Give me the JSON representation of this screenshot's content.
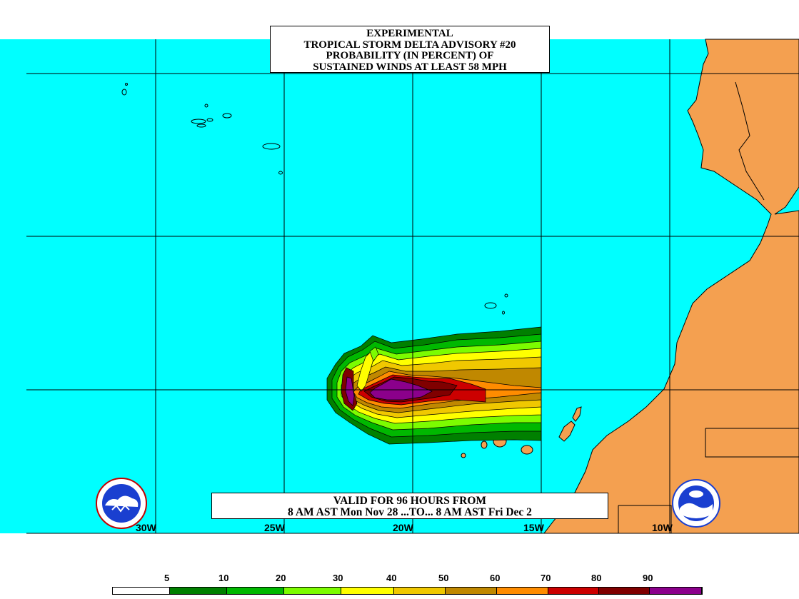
{
  "title": {
    "line1": "EXPERIMENTAL",
    "line2": "TROPICAL STORM DELTA ADVISORY #20",
    "line3": "PROBABILITY (IN PERCENT) OF",
    "line4": "SUSTAINED WINDS AT LEAST 58 MPH"
  },
  "valid": {
    "line1": "VALID FOR 96 HOURS FROM",
    "line2": "8 AM AST Mon Nov 28 ...TO... 8 AM AST Fri Dec 2"
  },
  "longitude_labels": [
    "30W",
    "25W",
    "20W",
    "15W",
    "10W"
  ],
  "legend": {
    "labels": [
      "5",
      "10",
      "20",
      "30",
      "40",
      "50",
      "60",
      "70",
      "80",
      "90"
    ],
    "colors": [
      "#ffffff",
      "#008000",
      "#00b800",
      "#7cfc00",
      "#ffff00",
      "#f0c800",
      "#c08800",
      "#ff8c00",
      "#cc0000",
      "#800000",
      "#8b008b"
    ]
  },
  "colors": {
    "ocean": "#00ffff",
    "land": "#f4a050",
    "grid": "#000000"
  },
  "logos": {
    "left": "nws-logo-icon",
    "right": "noaa-logo-icon"
  }
}
